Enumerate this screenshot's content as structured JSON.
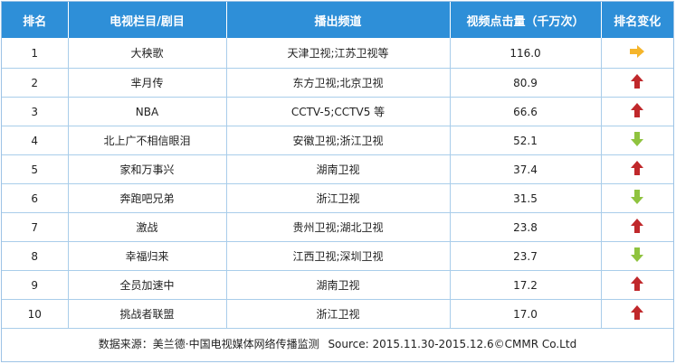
{
  "table": {
    "headers": [
      "排名",
      "电视栏目/剧目",
      "播出频道",
      "视频点击量（千万次）",
      "排名变化"
    ],
    "rows": [
      {
        "rank": "1",
        "title": "大秧歌",
        "channel": "天津卫视;江苏卫视等",
        "clicks": "116.0",
        "change": "same"
      },
      {
        "rank": "2",
        "title": "芈月传",
        "channel": "东方卫视;北京卫视",
        "clicks": "80.9",
        "change": "up"
      },
      {
        "rank": "3",
        "title": "NBA",
        "channel": "CCTV-5;CCTV5 等",
        "clicks": "66.6",
        "change": "up"
      },
      {
        "rank": "4",
        "title": "北上广不相信眼泪",
        "channel": "安徽卫视;浙江卫视",
        "clicks": "52.1",
        "change": "down"
      },
      {
        "rank": "5",
        "title": "家和万事兴",
        "channel": "湖南卫视",
        "clicks": "37.4",
        "change": "up"
      },
      {
        "rank": "6",
        "title": "奔跑吧兄弟",
        "channel": "浙江卫视",
        "clicks": "31.5",
        "change": "down"
      },
      {
        "rank": "7",
        "title": "激战",
        "channel": "贵州卫视;湖北卫视",
        "clicks": "23.8",
        "change": "up"
      },
      {
        "rank": "8",
        "title": "幸福归来",
        "channel": "江西卫视;深圳卫视",
        "clicks": "23.7",
        "change": "down"
      },
      {
        "rank": "9",
        "title": "全员加速中",
        "channel": "湖南卫视",
        "clicks": "17.2",
        "change": "up"
      },
      {
        "rank": "10",
        "title": "挑战者联盟",
        "channel": "浙江卫视",
        "clicks": "17.0",
        "change": "up"
      }
    ]
  },
  "footer": {
    "source_cn": "数据来源：美兰德·中国电视媒体网络传播监测",
    "source_en": "Source: 2015.11.30-2015.12.6©CMMR  Co.Ltd"
  },
  "colors": {
    "header_bg": "#2e8fd8",
    "up": "#c0282b",
    "down": "#8fc33f",
    "same": "#f5b52b"
  },
  "icons": {
    "up": "arrow-up-icon",
    "down": "arrow-down-icon",
    "same": "arrow-right-icon"
  }
}
